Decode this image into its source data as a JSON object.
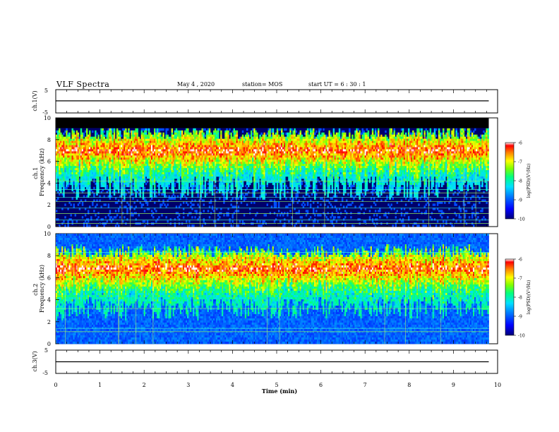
{
  "header": {
    "title": "VLF Spectra",
    "date": "May 4 , 2020",
    "station": "station= MOS",
    "start": "start UT = 6 : 30 : 1"
  },
  "chart_data": [
    {
      "type": "line",
      "panel": "channel-1-waveform",
      "ylabel": "ch.1(V)",
      "ylim": [
        -5,
        5
      ],
      "yticks": [
        "5",
        "-5"
      ],
      "xlim": [
        0,
        10
      ],
      "series": [
        {
          "x": [
            0,
            9.8
          ],
          "y": [
            0.2,
            0.2
          ]
        }
      ]
    },
    {
      "type": "heatmap",
      "panel": "channel-1-spectrogram",
      "ylabel": "ch.1\nFrequency (kHz)",
      "ylim": [
        0,
        10
      ],
      "yticks": [
        "0",
        "2",
        "4",
        "6",
        "8",
        "10"
      ],
      "xlim": [
        0,
        10
      ],
      "data_x_end": 9.8,
      "noise_band_top_khz": 9.1,
      "emission_band_khz": [
        5.5,
        8.5
      ],
      "emission_peak_khz": 7.0,
      "line_frequencies_khz": [
        0.3,
        0.6,
        1.2,
        1.7,
        2.3,
        2.7,
        3.1,
        3.4,
        4.2
      ],
      "colorbar": {
        "label": "log(PSD)(V²/Hz)",
        "range": [
          -10,
          -6
        ],
        "ticks": [
          "-6",
          "-7",
          "-8",
          "-9",
          "-10"
        ]
      }
    },
    {
      "type": "heatmap",
      "panel": "channel-2-spectrogram",
      "ylabel": "ch.2\nFrequency (kHz)",
      "ylim": [
        0,
        10
      ],
      "yticks": [
        "0",
        "2",
        "4",
        "6",
        "8",
        "10"
      ],
      "xlim": [
        0,
        10
      ],
      "data_x_end": 9.8,
      "emission_band_khz": [
        5.0,
        8.3
      ],
      "emission_peak_khz": 6.8,
      "line_frequencies_khz": [
        1.1,
        1.4,
        3.2,
        8.3
      ],
      "colorbar": {
        "label": "log(PSD)(V²/Hz)",
        "range": [
          -10,
          -6
        ],
        "ticks": [
          "-6",
          "-7",
          "-8",
          "-9",
          "-10"
        ]
      }
    },
    {
      "type": "line",
      "panel": "channel-3-waveform",
      "ylabel": "ch.3(V)",
      "ylim": [
        -5,
        5
      ],
      "yticks": [
        "5",
        "-5"
      ],
      "xlim": [
        0,
        10
      ],
      "series": [
        {
          "x": [
            0,
            9.8
          ],
          "y": [
            0.0,
            0.0
          ]
        }
      ]
    }
  ],
  "xaxis": {
    "label": "Time (min)",
    "ticks": [
      "0",
      "1",
      "2",
      "3",
      "4",
      "5",
      "6",
      "7",
      "8",
      "9",
      "10"
    ]
  },
  "colors": {
    "colormap": [
      "#00007a",
      "#0000ff",
      "#0080ff",
      "#00e0ff",
      "#00ff80",
      "#80ff00",
      "#ffff00",
      "#ff8000",
      "#ff0000",
      "#ffffff"
    ],
    "line_color": "#9aff60",
    "axis": "#000000"
  }
}
